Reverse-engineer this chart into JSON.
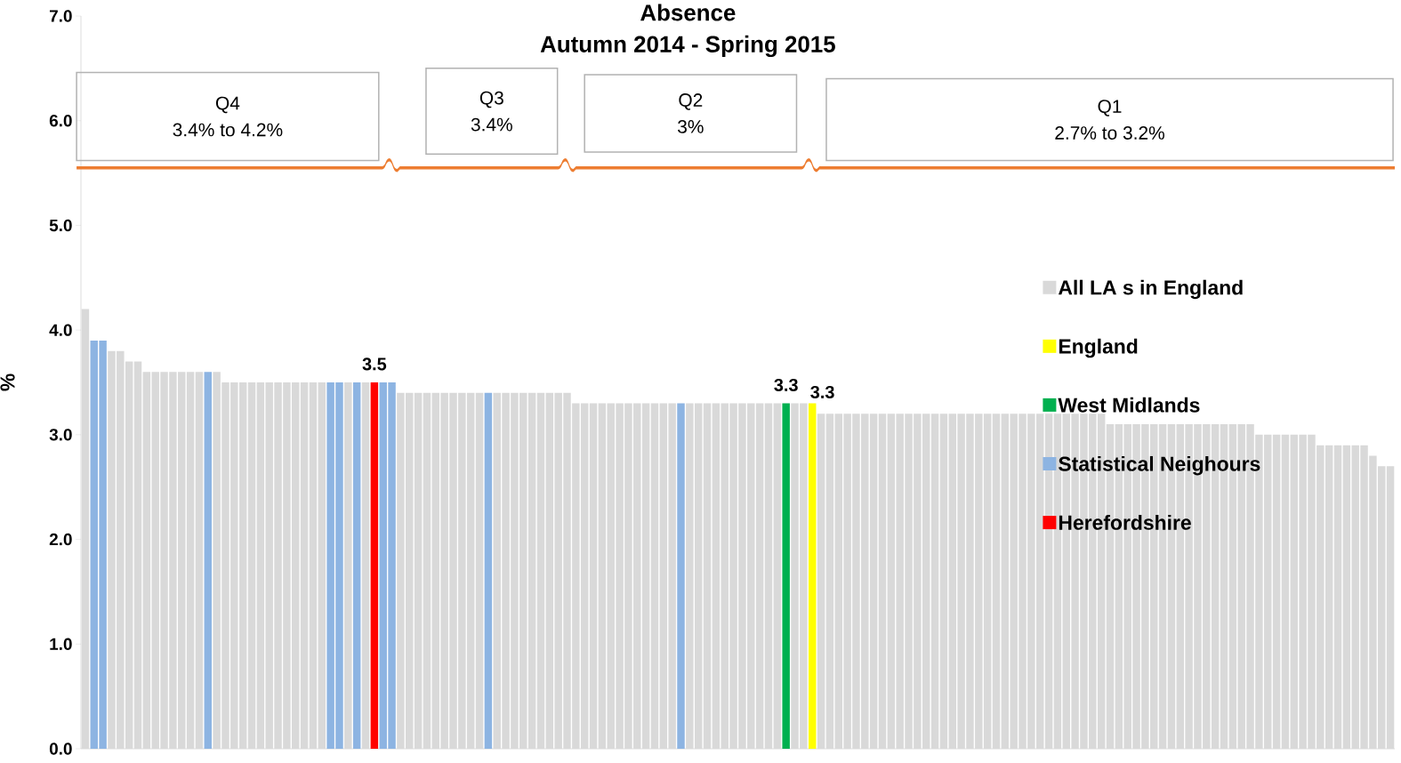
{
  "chart_data": {
    "type": "bar",
    "title": "Absence",
    "subtitle": "Autumn 2014 - Spring 2015",
    "ylabel": "%",
    "categories": [
      null,
      null,
      null,
      null,
      null,
      null,
      null,
      null,
      null,
      null,
      null,
      null,
      null,
      null,
      null,
      null,
      null,
      null,
      null,
      null,
      null,
      null,
      null,
      null,
      null,
      null,
      null,
      null,
      null,
      null,
      null,
      null,
      null,
      null,
      null,
      null,
      null,
      null,
      null,
      null,
      null,
      null,
      null,
      null,
      null,
      null,
      null,
      null,
      null,
      null,
      null,
      null,
      null,
      null,
      null,
      null,
      null,
      null,
      null,
      null,
      null,
      null,
      null,
      null,
      null,
      null,
      null,
      null,
      null,
      null,
      null,
      null,
      null,
      null,
      null,
      null,
      null,
      null,
      null,
      null,
      null,
      null,
      null,
      null,
      null,
      null,
      null,
      null,
      null,
      null,
      null,
      null,
      null,
      null,
      null,
      null,
      null,
      null,
      null,
      null,
      null,
      null,
      null,
      null,
      null,
      null,
      null,
      null,
      null,
      null,
      null,
      null,
      null,
      null,
      null,
      null,
      null,
      null,
      null,
      null,
      null,
      null,
      null,
      null,
      null,
      null,
      null,
      null,
      null,
      null,
      null,
      null,
      null,
      null,
      null,
      null,
      null,
      null,
      null,
      null,
      null,
      null,
      null,
      null,
      null,
      null,
      null,
      null,
      null,
      null
    ],
    "series": [
      {
        "name": "All LA s in England",
        "color": "#d9d9d9",
        "values": [
          4.2,
          null,
          null,
          3.8,
          3.8,
          3.7,
          3.7,
          3.6,
          3.6,
          3.6,
          3.6,
          3.6,
          3.6,
          3.6,
          null,
          3.6,
          3.5,
          3.5,
          3.5,
          3.5,
          3.5,
          3.5,
          3.5,
          3.5,
          3.5,
          3.5,
          3.5,
          3.5,
          null,
          null,
          3.5,
          null,
          3.5,
          null,
          null,
          null,
          3.4,
          3.4,
          3.4,
          3.4,
          3.4,
          3.4,
          3.4,
          3.4,
          3.4,
          3.4,
          null,
          3.4,
          3.4,
          3.4,
          3.4,
          3.4,
          3.4,
          3.4,
          3.4,
          3.4,
          3.3,
          3.3,
          3.3,
          3.3,
          3.3,
          3.3,
          3.3,
          3.3,
          3.3,
          3.3,
          3.3,
          3.3,
          null,
          3.3,
          3.3,
          3.3,
          3.3,
          3.3,
          3.3,
          3.3,
          3.3,
          3.3,
          3.3,
          3.3,
          null,
          3.3,
          3.3,
          null,
          3.2,
          3.2,
          3.2,
          3.2,
          3.2,
          3.2,
          3.2,
          3.2,
          3.2,
          3.2,
          3.2,
          3.2,
          3.2,
          3.2,
          3.2,
          3.2,
          3.2,
          3.2,
          3.2,
          3.2,
          3.2,
          3.2,
          3.2,
          3.2,
          3.2,
          3.2,
          3.2,
          3.2,
          3.2,
          3.2,
          3.2,
          3.2,
          3.2,
          3.1,
          3.1,
          3.1,
          3.1,
          3.1,
          3.1,
          3.1,
          3.1,
          3.1,
          3.1,
          3.1,
          3.1,
          3.1,
          3.1,
          3.1,
          3.1,
          3.1,
          3.0,
          3.0,
          3.0,
          3.0,
          3.0,
          3.0,
          3.0,
          2.9,
          2.9,
          2.9,
          2.9,
          2.9,
          2.9,
          2.8,
          2.7,
          2.7
        ]
      },
      {
        "name": "England",
        "color": "#ffff00",
        "data_labels": true,
        "values": [
          null,
          null,
          null,
          null,
          null,
          null,
          null,
          null,
          null,
          null,
          null,
          null,
          null,
          null,
          null,
          null,
          null,
          null,
          null,
          null,
          null,
          null,
          null,
          null,
          null,
          null,
          null,
          null,
          null,
          null,
          null,
          null,
          null,
          null,
          null,
          null,
          null,
          null,
          null,
          null,
          null,
          null,
          null,
          null,
          null,
          null,
          null,
          null,
          null,
          null,
          null,
          null,
          null,
          null,
          null,
          null,
          null,
          null,
          null,
          null,
          null,
          null,
          null,
          null,
          null,
          null,
          null,
          null,
          null,
          null,
          null,
          null,
          null,
          null,
          null,
          null,
          null,
          null,
          null,
          null,
          null,
          null,
          null,
          3.3,
          null,
          null,
          null,
          null,
          null,
          null,
          null,
          null,
          null,
          null,
          null,
          null,
          null,
          null,
          null,
          null,
          null,
          null,
          null,
          null,
          null,
          null,
          null,
          null,
          null,
          null,
          null,
          null,
          null,
          null,
          null,
          null,
          null,
          null,
          null,
          null,
          null,
          null,
          null,
          null,
          null,
          null,
          null,
          null,
          null,
          null,
          null,
          null,
          null,
          null,
          null,
          null,
          null,
          null,
          null,
          null,
          null,
          null,
          null,
          null,
          null,
          null,
          null,
          null,
          null,
          null
        ]
      },
      {
        "name": "West Midlands",
        "color": "#00b050",
        "data_labels": true,
        "values": [
          null,
          null,
          null,
          null,
          null,
          null,
          null,
          null,
          null,
          null,
          null,
          null,
          null,
          null,
          null,
          null,
          null,
          null,
          null,
          null,
          null,
          null,
          null,
          null,
          null,
          null,
          null,
          null,
          null,
          null,
          null,
          null,
          null,
          null,
          null,
          null,
          null,
          null,
          null,
          null,
          null,
          null,
          null,
          null,
          null,
          null,
          null,
          null,
          null,
          null,
          null,
          null,
          null,
          null,
          null,
          null,
          null,
          null,
          null,
          null,
          null,
          null,
          null,
          null,
          null,
          null,
          null,
          null,
          null,
          null,
          null,
          null,
          null,
          null,
          null,
          null,
          null,
          null,
          null,
          null,
          3.3,
          null,
          null,
          null,
          null,
          null,
          null,
          null,
          null,
          null,
          null,
          null,
          null,
          null,
          null,
          null,
          null,
          null,
          null,
          null,
          null,
          null,
          null,
          null,
          null,
          null,
          null,
          null,
          null,
          null,
          null,
          null,
          null,
          null,
          null,
          null,
          null,
          null,
          null,
          null,
          null,
          null,
          null,
          null,
          null,
          null,
          null,
          null,
          null,
          null,
          null,
          null,
          null,
          null,
          null,
          null,
          null,
          null,
          null,
          null,
          null,
          null,
          null,
          null,
          null,
          null,
          null,
          null,
          null,
          null
        ]
      },
      {
        "name": "Statistical Neighours",
        "color": "#8db4e2",
        "values": [
          null,
          3.9,
          3.9,
          null,
          null,
          null,
          null,
          null,
          null,
          null,
          null,
          null,
          null,
          null,
          3.6,
          null,
          null,
          null,
          null,
          null,
          null,
          null,
          null,
          null,
          null,
          null,
          null,
          null,
          3.5,
          3.5,
          null,
          3.5,
          null,
          null,
          3.5,
          3.5,
          null,
          null,
          null,
          null,
          null,
          null,
          null,
          null,
          null,
          null,
          3.4,
          null,
          null,
          null,
          null,
          null,
          null,
          null,
          null,
          null,
          null,
          null,
          null,
          null,
          null,
          null,
          null,
          null,
          null,
          null,
          null,
          null,
          3.3,
          null,
          null,
          null,
          null,
          null,
          null,
          null,
          null,
          null,
          null,
          null,
          null,
          null,
          null,
          null,
          null,
          null,
          null,
          null,
          null,
          null,
          null,
          null,
          null,
          null,
          null,
          null,
          null,
          null,
          null,
          null,
          null,
          null,
          null,
          null,
          null,
          null,
          null,
          null,
          null,
          null,
          null,
          null,
          null,
          null,
          null,
          null,
          null,
          null,
          null,
          null,
          null,
          null,
          null,
          null,
          null,
          null,
          null,
          null,
          null,
          null,
          null,
          null,
          null,
          null,
          null,
          null,
          null,
          null,
          null,
          null,
          null,
          null,
          null,
          null,
          null,
          null,
          null,
          null,
          null,
          null
        ]
      },
      {
        "name": "Herefordshire",
        "color": "#ff0000",
        "data_labels": true,
        "values": [
          null,
          null,
          null,
          null,
          null,
          null,
          null,
          null,
          null,
          null,
          null,
          null,
          null,
          null,
          null,
          null,
          null,
          null,
          null,
          null,
          null,
          null,
          null,
          null,
          null,
          null,
          null,
          null,
          null,
          null,
          null,
          null,
          null,
          3.5,
          null,
          null,
          null,
          null,
          null,
          null,
          null,
          null,
          null,
          null,
          null,
          null,
          null,
          null,
          null,
          null,
          null,
          null,
          null,
          null,
          null,
          null,
          null,
          null,
          null,
          null,
          null,
          null,
          null,
          null,
          null,
          null,
          null,
          null,
          null,
          null,
          null,
          null,
          null,
          null,
          null,
          null,
          null,
          null,
          null,
          null,
          null,
          null,
          null,
          null,
          null,
          null,
          null,
          null,
          null,
          null,
          null,
          null,
          null,
          null,
          null,
          null,
          null,
          null,
          null,
          null,
          null,
          null,
          null,
          null,
          null,
          null,
          null,
          null,
          null,
          null,
          null,
          null,
          null,
          null,
          null,
          null,
          null,
          null,
          null,
          null,
          null,
          null,
          null,
          null,
          null,
          null,
          null,
          null,
          null,
          null,
          null,
          null,
          null,
          null,
          null,
          null,
          null,
          null,
          null,
          null,
          null,
          null,
          null,
          null,
          null,
          null,
          null,
          null,
          null,
          null
        ]
      }
    ],
    "ylim": [
      0,
      7
    ],
    "yticks": [
      {
        "value": 0,
        "label": "0.0"
      },
      {
        "value": 1,
        "label": "1.0"
      },
      {
        "value": 2,
        "label": "2.0"
      },
      {
        "value": 3,
        "label": "3.0"
      },
      {
        "value": 4,
        "label": "4.0"
      },
      {
        "value": 5,
        "label": "5.0"
      },
      {
        "value": 6,
        "label": "6.0"
      },
      {
        "value": 7,
        "label": "7.0"
      }
    ],
    "legend": "right",
    "annotations": [
      "Q4",
      "3.4% to 4.2%",
      "Q3",
      "3.4%",
      "Q2",
      "3%",
      "Q1",
      "2.7% to 3.2%"
    ]
  }
}
